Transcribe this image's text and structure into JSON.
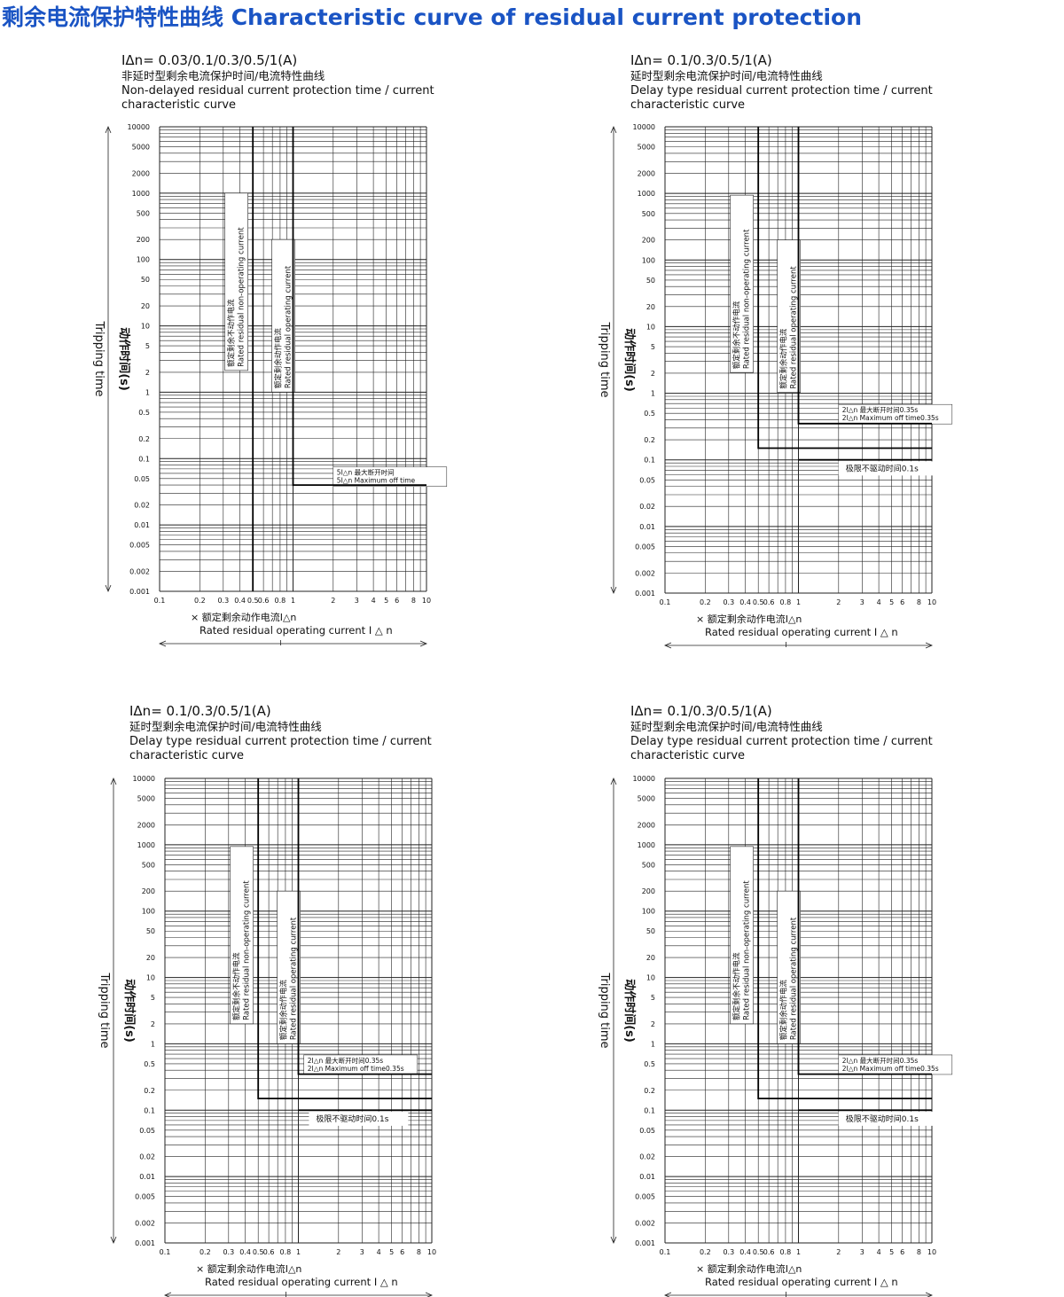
{
  "page_title": "剩余电流保护特性曲线 Characteristic curve of residual current protection",
  "colors": {
    "title": "#1a54c4",
    "grid": "#222222",
    "curve": "#000000"
  },
  "chart_data": [
    {
      "type": "line",
      "rating": "IΔn= 0.03/0.1/0.3/0.5/1(A)",
      "heading_cn": "非延时型剩余电流保护时间/电流特性曲线",
      "heading_en": "Non-delayed residual current protection time / current characteristic curve",
      "ylabel_cn": "动作时间(s)",
      "ylabel_en": "Tripping time",
      "xlabel_cn": "× 额定剩余动作电流I△n",
      "xlabel_en": "Rated residual operating current I △ n",
      "x_scale": "log",
      "y_scale": "log",
      "xlim": [
        0.1,
        10
      ],
      "ylim": [
        0.001,
        10000
      ],
      "x_ticks": [
        "0.1",
        "0.2",
        "0.3",
        "0.4",
        "0.5",
        "0.6",
        "0.8",
        "1",
        "2",
        "3",
        "4",
        "5",
        "6",
        "8",
        "10"
      ],
      "y_ticks": [
        "10000",
        "5000",
        "2000",
        "1000",
        "500",
        "200",
        "100",
        "50",
        "20",
        "10",
        "5",
        "2",
        "1",
        "0.5",
        "0.2",
        "0.1",
        "0.05",
        "0.02",
        "0.01",
        "0.005",
        "0.002",
        "0.001"
      ],
      "grid": true,
      "series": [
        {
          "x": [
            0.5,
            0.5
          ],
          "y": [
            0.001,
            10000
          ]
        },
        {
          "x": [
            1,
            1,
            10
          ],
          "y": [
            10000,
            0.04,
            0.04
          ]
        }
      ],
      "annotations": [
        {
          "cn": "额定剩余不动作电流",
          "en": "Rated residual non-operating current",
          "at_x": 0.4
        },
        {
          "cn": "额定剩余动作电流",
          "en": "Rated residual operating current",
          "at_x": 0.9
        },
        {
          "cn": "5I△n 最大断开时间",
          "en": "5I△n Maximum off time",
          "at_x": 2,
          "at_y": 0.055
        }
      ]
    },
    {
      "type": "line",
      "rating": "IΔn= 0.1/0.3/0.5/1(A)",
      "heading_cn": "延时型剩余电流保护时间/电流特性曲线",
      "heading_en": "Delay type residual current protection time / current characteristic curve",
      "ylabel_cn": "动作时间(s)",
      "ylabel_en": "Tripping time",
      "xlabel_cn": "× 额定剩余动作电流I△n",
      "xlabel_en": "Rated residual operating current I △ n",
      "x_scale": "log",
      "y_scale": "log",
      "xlim": [
        0.1,
        10
      ],
      "ylim": [
        0.001,
        10000
      ],
      "x_ticks": [
        "0.1",
        "0.2",
        "0.3",
        "0.4",
        "0.5",
        "0.6",
        "0.8",
        "1",
        "2",
        "3",
        "4",
        "5",
        "6",
        "8",
        "10"
      ],
      "y_ticks": [
        "10000",
        "5000",
        "2000",
        "1000",
        "500",
        "200",
        "100",
        "50",
        "20",
        "10",
        "5",
        "2",
        "1",
        "0.5",
        "0.2",
        "0.1",
        "0.05",
        "0.02",
        "0.01",
        "0.005",
        "0.002",
        "0.001"
      ],
      "grid": true,
      "series": [
        {
          "x": [
            0.5,
            0.5,
            10
          ],
          "y": [
            10000,
            0.15,
            0.15
          ]
        },
        {
          "x": [
            1,
            1,
            10
          ],
          "y": [
            10000,
            0.35,
            0.35
          ]
        },
        {
          "x": [
            1,
            10
          ],
          "y": [
            0.1,
            0.1
          ]
        }
      ],
      "annotations": [
        {
          "cn": "额定剩余不动作电流",
          "en": "Rated residual non-operating current",
          "at_x": 0.4
        },
        {
          "cn": "额定剩余动作电流",
          "en": "Rated residual operating current",
          "at_x": 0.9
        },
        {
          "cn": "2I△n 最大断开时间0.35s",
          "en": "2I△n Maximum off time0.35s",
          "at_x": 2,
          "at_y": 0.5
        },
        {
          "text": "极限不驱动时间0.1s",
          "at_x": 2,
          "at_y": 0.07
        }
      ]
    },
    {
      "type": "line",
      "rating": "IΔn= 0.1/0.3/0.5/1(A)",
      "heading_cn": "延时型剩余电流保护时间/电流特性曲线",
      "heading_en": "Delay type residual current protection time / current characteristic curve",
      "ylabel_cn": "动作时间(s)",
      "ylabel_en": "Tripping time",
      "xlabel_cn": "× 额定剩余动作电流I△n",
      "xlabel_en": "Rated residual operating current I △ n",
      "x_scale": "log",
      "y_scale": "log",
      "xlim": [
        0.1,
        10
      ],
      "ylim": [
        0.001,
        10000
      ],
      "x_ticks": [
        "0.1",
        "0.2",
        "0.3",
        "0.4",
        "0.5",
        "0.6",
        "0.8",
        "1",
        "2",
        "3",
        "4",
        "5",
        "6",
        "8",
        "10"
      ],
      "y_ticks": [
        "10000",
        "5000",
        "2000",
        "1000",
        "500",
        "200",
        "100",
        "50",
        "20",
        "10",
        "5",
        "2",
        "1",
        "0.5",
        "0.2",
        "0.1",
        "0.05",
        "0.02",
        "0.01",
        "0.005",
        "0.002",
        "0.001"
      ],
      "grid": true,
      "series": [
        {
          "x": [
            0.5,
            0.5,
            10
          ],
          "y": [
            10000,
            0.15,
            0.15
          ]
        },
        {
          "x": [
            1,
            1,
            10
          ],
          "y": [
            10000,
            0.35,
            0.35
          ]
        },
        {
          "x": [
            1,
            10
          ],
          "y": [
            0.1,
            0.1
          ]
        }
      ],
      "annotations": [
        {
          "cn": "额定剩余不动作电流",
          "en": "Rated residual non-operating current",
          "at_x": 0.4
        },
        {
          "cn": "额定剩余动作电流",
          "en": "Rated residual operating current",
          "at_x": 0.9
        },
        {
          "cn": "2I△n 最大断开时间0.35s",
          "en": "2I△n Maximum off time0.35s",
          "at_x": 1.1,
          "at_y": 0.5
        },
        {
          "text": "极限不驱动时间0.1s",
          "at_x": 1.2,
          "at_y": 0.07
        }
      ]
    },
    {
      "type": "line",
      "rating": "IΔn= 0.1/0.3/0.5/1(A)",
      "heading_cn": "延时型剩余电流保护时间/电流特性曲线",
      "heading_en": "Delay type residual current protection time / current characteristic curve",
      "ylabel_cn": "动作时间(s)",
      "ylabel_en": "Tripping time",
      "xlabel_cn": "× 额定剩余动作电流I△n",
      "xlabel_en": "Rated residual operating current I △ n",
      "x_scale": "log",
      "y_scale": "log",
      "xlim": [
        0.1,
        10
      ],
      "ylim": [
        0.001,
        10000
      ],
      "x_ticks": [
        "0.1",
        "0.2",
        "0.3",
        "0.4",
        "0.5",
        "0.6",
        "0.8",
        "1",
        "2",
        "3",
        "4",
        "5",
        "6",
        "8",
        "10"
      ],
      "y_ticks": [
        "10000",
        "5000",
        "2000",
        "1000",
        "500",
        "200",
        "100",
        "50",
        "20",
        "10",
        "5",
        "2",
        "1",
        "0.5",
        "0.2",
        "0.1",
        "0.05",
        "0.02",
        "0.01",
        "0.005",
        "0.002",
        "0.001"
      ],
      "grid": true,
      "series": [
        {
          "x": [
            0.5,
            0.5,
            10
          ],
          "y": [
            10000,
            0.15,
            0.15
          ]
        },
        {
          "x": [
            1,
            1,
            10
          ],
          "y": [
            10000,
            0.35,
            0.35
          ]
        },
        {
          "x": [
            1,
            10
          ],
          "y": [
            0.1,
            0.1
          ]
        }
      ],
      "annotations": [
        {
          "cn": "额定剩余不动作电流",
          "en": "Rated residual non-operating current",
          "at_x": 0.4
        },
        {
          "cn": "额定剩余动作电流",
          "en": "Rated residual operating current",
          "at_x": 0.9
        },
        {
          "cn": "2I△n 最大断开时间0.35s",
          "en": "2I△n Maximum off time0.35s",
          "at_x": 2,
          "at_y": 0.5
        },
        {
          "text": "极限不驱动时间0.1s",
          "at_x": 2,
          "at_y": 0.07
        }
      ]
    }
  ]
}
